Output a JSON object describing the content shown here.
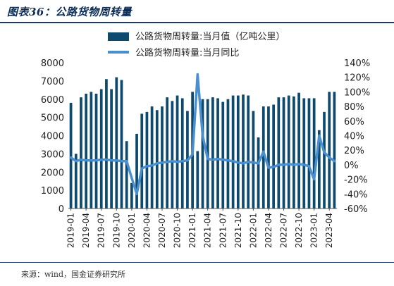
{
  "header": {
    "title": "图表36：公路货物周转量"
  },
  "footer": {
    "source": "来源：wind，国金证券研究所"
  },
  "colors": {
    "bar": "#0d4a6e",
    "line": "#4a8fd0",
    "rule": "#1a3b6b"
  },
  "chart_data": {
    "type": "bar",
    "categories": [
      "2019-01",
      "2019-02",
      "2019-03",
      "2019-04",
      "2019-05",
      "2019-06",
      "2019-07",
      "2019-08",
      "2019-09",
      "2019-10",
      "2019-11",
      "2019-12",
      "2020-01",
      "2020-02",
      "2020-03",
      "2020-04",
      "2020-05",
      "2020-06",
      "2020-07",
      "2020-08",
      "2020-09",
      "2020-10",
      "2020-11",
      "2020-12",
      "2021-01",
      "2021-02",
      "2021-03",
      "2021-04",
      "2021-05",
      "2021-06",
      "2021-07",
      "2021-08",
      "2021-09",
      "2021-10",
      "2021-11",
      "2021-12",
      "2022-01",
      "2022-02",
      "2022-03",
      "2022-04",
      "2022-05",
      "2022-06",
      "2022-07",
      "2022-08",
      "2022-09",
      "2022-10",
      "2022-11",
      "2022-12",
      "2023-01",
      "2023-02",
      "2023-03",
      "2023-04",
      "2023-05"
    ],
    "x_tick_labels": [
      "2019-01",
      "2019-04",
      "2019-07",
      "2019-10",
      "2020-01",
      "2020-04",
      "2020-07",
      "2020-10",
      "2021-01",
      "2021-04",
      "2021-07",
      "2021-10",
      "2022-01",
      "2022-04",
      "2022-07",
      "2022-10",
      "2023-01",
      "2023-04"
    ],
    "series": [
      {
        "name": "公路货物周转量:当月值（亿吨公里）",
        "axis": "left",
        "type": "bar",
        "values": [
          5800,
          3000,
          6100,
          6300,
          6400,
          6300,
          6550,
          7100,
          6550,
          7200,
          7050,
          3700,
          1400,
          4100,
          5200,
          5300,
          5600,
          5400,
          5600,
          6100,
          5900,
          6200,
          6050,
          5350,
          6400,
          3150,
          6000,
          6000,
          6100,
          6050,
          5850,
          6000,
          6200,
          6200,
          6250,
          6200,
          5350,
          3900,
          5600,
          5600,
          5700,
          6100,
          6100,
          6200,
          6150,
          6350,
          6050,
          6050,
          6050,
          4300,
          5300,
          6400,
          6400
        ],
        "color": "#0d4a6e"
      },
      {
        "name": "公路货物周转量:当月同比",
        "axis": "right",
        "type": "line",
        "values": [
          10,
          5,
          7,
          6,
          6,
          6,
          7,
          7,
          6,
          6,
          5,
          5,
          -18,
          -40,
          -5,
          -2,
          -1,
          2,
          3,
          4,
          5,
          4,
          5,
          6,
          14,
          124,
          40,
          8,
          7,
          8,
          7,
          6,
          5,
          3,
          2,
          4,
          3,
          2,
          18,
          -4,
          -3,
          0,
          0,
          1,
          0,
          1,
          0,
          -2,
          -20,
          40,
          17,
          10,
          5
        ],
        "color": "#4a8fd0"
      }
    ],
    "ylim_left": [
      0,
      8000
    ],
    "ylim_right": [
      -60,
      140
    ],
    "yticks_left": [
      0,
      1000,
      2000,
      3000,
      4000,
      5000,
      6000,
      7000,
      8000
    ],
    "yticks_right": [
      "-60%",
      "-40%",
      "-20%",
      "0%",
      "20%",
      "40%",
      "60%",
      "80%",
      "100%",
      "120%",
      "140%"
    ],
    "legend_position": "top-center"
  }
}
